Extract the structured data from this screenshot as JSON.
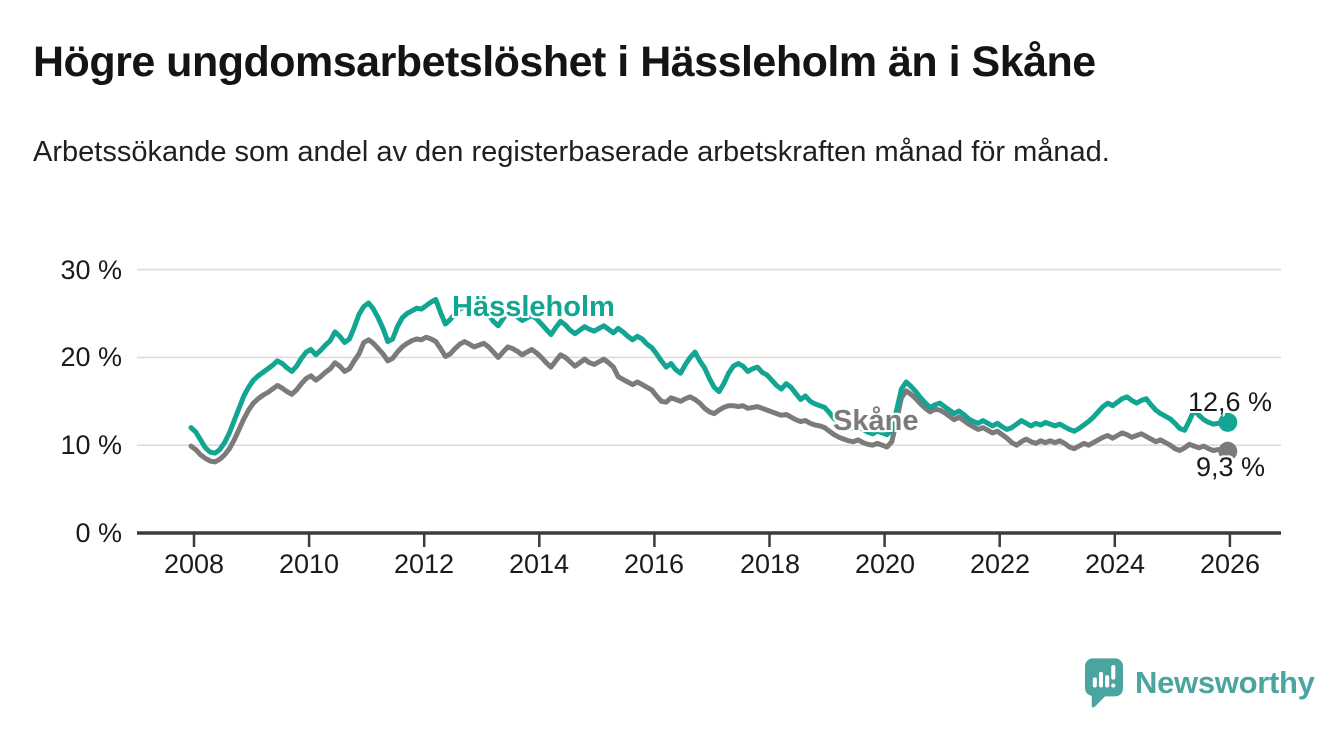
{
  "header": {
    "title": "Högre ungdomsarbetslöshet i Hässleholm än i Skåne",
    "subtitle": "Arbetssökande som andel av den registerbaserade arbetskraften månad för månad."
  },
  "footer": {
    "brand": "Newsworthy"
  },
  "colors": {
    "hassleholm": "#12A592",
    "skane": "#7B7B7B",
    "axis": "#3C3C3C",
    "grid": "#DCDCDC",
    "logo": "#4AA5A0"
  },
  "chart_data": {
    "type": "line",
    "title": "",
    "xlabel": "",
    "ylabel": "",
    "x_unit": "month",
    "x_start_year": 2008,
    "x_end": "2026-01",
    "ylim": [
      0,
      31
    ],
    "grid": "horizontal",
    "y_tick_values": [
      30,
      20,
      10,
      0
    ],
    "y_tick_labels": [
      "30 %",
      "20 %",
      "10 %",
      "0 %"
    ],
    "x_tick_values": [
      2008,
      2010,
      2012,
      2014,
      2016,
      2018,
      2020,
      2022,
      2024,
      2026
    ],
    "x_tick_labels": [
      "2008",
      "2010",
      "2012",
      "2014",
      "2016",
      "2018",
      "2020",
      "2022",
      "2024",
      "2026"
    ],
    "series": [
      {
        "name": "Hässleholm",
        "color": "#12A592",
        "end_label": "12,6 %",
        "end_value": 12.6,
        "values": [
          12.0,
          11.5,
          10.6,
          9.7,
          9.2,
          9.1,
          9.5,
          10.3,
          11.4,
          12.8,
          14.2,
          15.6,
          16.6,
          17.4,
          17.9,
          18.3,
          18.7,
          19.1,
          19.6,
          19.3,
          18.8,
          18.4,
          19.0,
          19.9,
          20.6,
          20.9,
          20.3,
          20.8,
          21.4,
          21.9,
          22.9,
          22.4,
          21.7,
          22.1,
          23.4,
          24.9,
          25.8,
          26.2,
          25.5,
          24.5,
          23.3,
          21.8,
          22.1,
          23.5,
          24.5,
          25.0,
          25.3,
          25.6,
          25.5,
          25.9,
          26.3,
          26.6,
          25.1,
          23.8,
          24.3,
          25.0,
          25.5,
          25.8,
          25.4,
          25.0,
          25.3,
          25.6,
          24.9,
          24.1,
          23.6,
          24.4,
          25.2,
          25.0,
          24.6,
          24.2,
          24.5,
          24.8,
          24.4,
          23.8,
          23.2,
          22.6,
          23.4,
          24.1,
          23.7,
          23.1,
          22.7,
          23.1,
          23.5,
          23.2,
          23.0,
          23.3,
          23.6,
          23.2,
          22.8,
          23.3,
          22.9,
          22.4,
          22.0,
          22.4,
          22.1,
          21.5,
          21.1,
          20.4,
          19.6,
          18.9,
          19.3,
          18.6,
          18.2,
          19.2,
          20.0,
          20.6,
          19.6,
          18.8,
          17.6,
          16.6,
          16.1,
          17.0,
          18.2,
          19.0,
          19.3,
          19.0,
          18.4,
          18.7,
          18.9,
          18.3,
          18.0,
          17.4,
          16.8,
          16.4,
          17.0,
          16.6,
          15.9,
          15.2,
          15.6,
          15.0,
          14.7,
          14.5,
          14.3,
          13.7,
          13.0,
          12.6,
          12.9,
          12.4,
          11.9,
          12.2,
          11.8,
          11.5,
          11.3,
          11.6,
          11.4,
          11.2,
          11.8,
          14.0,
          16.4,
          17.2,
          16.7,
          16.1,
          15.4,
          14.8,
          14.3,
          14.6,
          14.8,
          14.4,
          14.0,
          13.6,
          13.9,
          13.5,
          13.0,
          12.7,
          12.5,
          12.8,
          12.5,
          12.2,
          12.5,
          12.1,
          11.8,
          12.0,
          12.4,
          12.8,
          12.5,
          12.2,
          12.5,
          12.3,
          12.6,
          12.4,
          12.2,
          12.4,
          12.1,
          11.8,
          11.6,
          11.9,
          12.3,
          12.7,
          13.2,
          13.8,
          14.4,
          14.8,
          14.5,
          14.9,
          15.3,
          15.5,
          15.1,
          14.8,
          15.1,
          15.3,
          14.6,
          14.0,
          13.6,
          13.3,
          13.0,
          12.5,
          11.9,
          11.7,
          12.8,
          14.0,
          13.4,
          12.9,
          12.6,
          12.4,
          12.5,
          12.7,
          12.6
        ]
      },
      {
        "name": "Skåne",
        "color": "#7B7B7B",
        "end_label": "9,3 %",
        "end_value": 9.3,
        "values": [
          9.9,
          9.5,
          8.9,
          8.5,
          8.2,
          8.1,
          8.4,
          8.9,
          9.6,
          10.6,
          11.8,
          13.0,
          14.0,
          14.8,
          15.3,
          15.7,
          16.0,
          16.4,
          16.8,
          16.5,
          16.1,
          15.8,
          16.3,
          17.0,
          17.6,
          17.9,
          17.4,
          17.8,
          18.3,
          18.7,
          19.4,
          19.0,
          18.4,
          18.7,
          19.6,
          20.4,
          21.7,
          22.0,
          21.6,
          21.0,
          20.4,
          19.6,
          19.9,
          20.6,
          21.2,
          21.6,
          21.9,
          22.1,
          22.0,
          22.3,
          22.1,
          21.8,
          21.0,
          20.1,
          20.4,
          21.0,
          21.5,
          21.8,
          21.5,
          21.2,
          21.4,
          21.6,
          21.2,
          20.6,
          20.0,
          20.6,
          21.2,
          21.0,
          20.7,
          20.3,
          20.6,
          20.9,
          20.5,
          20.0,
          19.4,
          18.9,
          19.6,
          20.3,
          20.0,
          19.5,
          19.0,
          19.4,
          19.8,
          19.4,
          19.2,
          19.5,
          19.8,
          19.4,
          18.9,
          17.8,
          17.5,
          17.2,
          16.9,
          17.2,
          16.9,
          16.6,
          16.3,
          15.6,
          15.0,
          14.9,
          15.4,
          15.2,
          15.0,
          15.3,
          15.5,
          15.2,
          14.8,
          14.2,
          13.8,
          13.6,
          14.0,
          14.3,
          14.5,
          14.5,
          14.4,
          14.5,
          14.2,
          14.3,
          14.4,
          14.2,
          14.0,
          13.8,
          13.6,
          13.4,
          13.5,
          13.2,
          12.9,
          12.7,
          12.8,
          12.5,
          12.3,
          12.2,
          12.0,
          11.6,
          11.2,
          10.9,
          10.7,
          10.5,
          10.4,
          10.6,
          10.3,
          10.1,
          10.0,
          10.2,
          10.0,
          9.8,
          10.4,
          12.8,
          15.4,
          16.2,
          15.8,
          15.3,
          14.7,
          14.2,
          13.8,
          14.1,
          14.0,
          13.7,
          13.3,
          12.9,
          13.2,
          12.8,
          12.4,
          12.1,
          11.8,
          12.0,
          11.7,
          11.4,
          11.6,
          11.2,
          10.8,
          10.3,
          10.0,
          10.4,
          10.7,
          10.4,
          10.2,
          10.5,
          10.3,
          10.5,
          10.3,
          10.5,
          10.2,
          9.8,
          9.6,
          9.9,
          10.2,
          10.0,
          10.3,
          10.6,
          10.9,
          11.1,
          10.8,
          11.1,
          11.4,
          11.2,
          10.9,
          11.1,
          11.3,
          11.0,
          10.7,
          10.4,
          10.6,
          10.3,
          10.0,
          9.6,
          9.4,
          9.7,
          10.1,
          9.9,
          9.7,
          9.9,
          9.6,
          9.4,
          9.5,
          9.4,
          9.3
        ]
      }
    ]
  }
}
